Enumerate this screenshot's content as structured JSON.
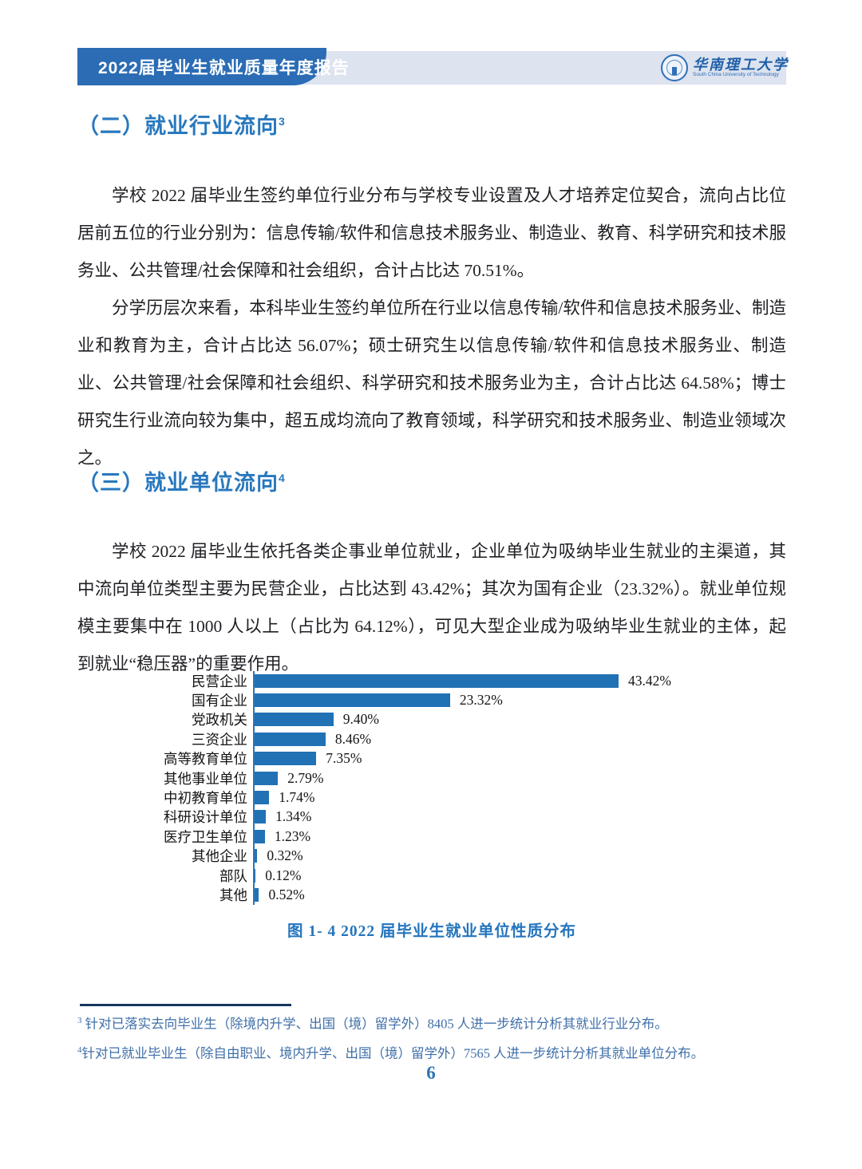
{
  "header": {
    "banner_title": "2022届毕业生就业质量年度报告",
    "logo": {
      "university_cn": "华南理工大学",
      "university_en": "South China University of Technology"
    }
  },
  "section_industry": {
    "heading": "（二）就业行业流向",
    "heading_sup": "3",
    "paragraphs": [
      "学校 2022 届毕业生签约单位行业分布与学校专业设置及人才培养定位契合，流向占比位居前五位的行业分别为：信息传输/软件和信息技术服务业、制造业、教育、科学研究和技术服务业、公共管理/社会保障和社会组织，合计占比达 70.51%。",
      "分学历层次来看，本科毕业生签约单位所在行业以信息传输/软件和信息技术服务业、制造业和教育为主，合计占比达 56.07%；硕士研究生以信息传输/软件和信息技术服务业、制造业、公共管理/社会保障和社会组织、科学研究和技术服务业为主，合计占比达 64.58%；博士研究生行业流向较为集中，超五成均流向了教育领域，科学研究和技术服务业、制造业领域次之。"
    ]
  },
  "section_unit": {
    "heading": "（三）就业单位流向",
    "heading_sup": "4",
    "paragraphs": [
      "学校 2022 届毕业生依托各类企事业单位就业，企业单位为吸纳毕业生就业的主渠道，其中流向单位类型主要为民营企业，占比达到 43.42%；其次为国有企业（23.32%）。就业单位规模主要集中在 1000 人以上（占比为 64.12%），可见大型企业成为吸纳毕业生就业的主体，起到就业“稳压器”的重要作用。"
    ]
  },
  "chart_data": {
    "type": "bar",
    "orientation": "horizontal",
    "title": "图 1- 4 2022 届毕业生就业单位性质分布",
    "categories": [
      "民营企业",
      "国有企业",
      "党政机关",
      "三资企业",
      "高等教育单位",
      "其他事业单位",
      "中初教育单位",
      "科研设计单位",
      "医疗卫生单位",
      "其他企业",
      "部队",
      "其他"
    ],
    "values": [
      43.42,
      23.32,
      9.4,
      8.46,
      7.35,
      2.79,
      1.74,
      1.34,
      1.23,
      0.32,
      0.12,
      0.52
    ],
    "value_labels": [
      "43.42%",
      "23.32%",
      "9.40%",
      "8.46%",
      "7.35%",
      "2.79%",
      "1.74%",
      "1.34%",
      "1.23%",
      "0.32%",
      "0.12%",
      "0.52%"
    ],
    "xlim": [
      0,
      45
    ],
    "bar_color": "#2171b5",
    "axis_color": "#2e75b6",
    "grid": false,
    "legend": false
  },
  "figure_caption": "图 1- 4 2022 届毕业生就业单位性质分布",
  "footnotes": [
    {
      "sup": "3",
      "text": " 针对已落实去向毕业生（除境内升学、出国（境）留学外）8405 人进一步统计分析其就业行业分布。"
    },
    {
      "sup": "4",
      "text": "针对已就业毕业生（除自由职业、境内升学、出国（境）留学外）7565 人进一步统计分析其就业单位分布。"
    }
  ],
  "page_number": "6",
  "colors": {
    "banner_blue": "#2b6cb5",
    "banner_strip": "#dde3ef",
    "heading_blue": "#2878be",
    "caption_blue": "#2475bd",
    "footnote_blue": "#3f6fa8",
    "bar_blue": "#2171b5"
  }
}
